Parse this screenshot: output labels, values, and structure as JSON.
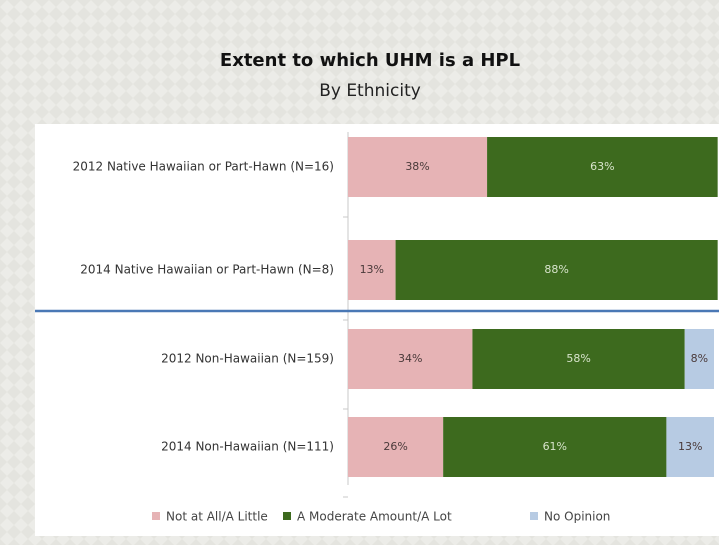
{
  "chart_data": {
    "type": "stacked-bar-horizontal",
    "title": "Extent to which UHM is a HPL",
    "subtitle": "By Ethnicity",
    "categories": [
      "2012 Native Hawaiian or Part-Hawn (N=16)",
      "2014 Native Hawaiian or Part-Hawn (N=8)",
      "2012 Non-Hawaiian (N=159)",
      "2014 Non-Hawaiian (N=111)"
    ],
    "xlim": [
      0,
      100
    ],
    "legend": "bottom",
    "series": [
      {
        "name": "Not at All/A Little",
        "color": "#e6b3b5",
        "values": [
          38,
          13,
          34,
          26
        ],
        "value_labels": [
          "38%",
          "13%",
          "34%",
          "26%"
        ]
      },
      {
        "name": "A Moderate Amount/A Lot",
        "color": "#3d6a1e",
        "values": [
          63,
          88,
          58,
          61
        ],
        "value_labels": [
          "63%",
          "88%",
          "58%",
          "61%"
        ]
      },
      {
        "name": "No Opinion",
        "color": "#b7cbe3",
        "values": [
          null,
          null,
          8,
          13
        ],
        "value_labels": [
          null,
          null,
          "8%",
          "13%"
        ]
      }
    ]
  }
}
